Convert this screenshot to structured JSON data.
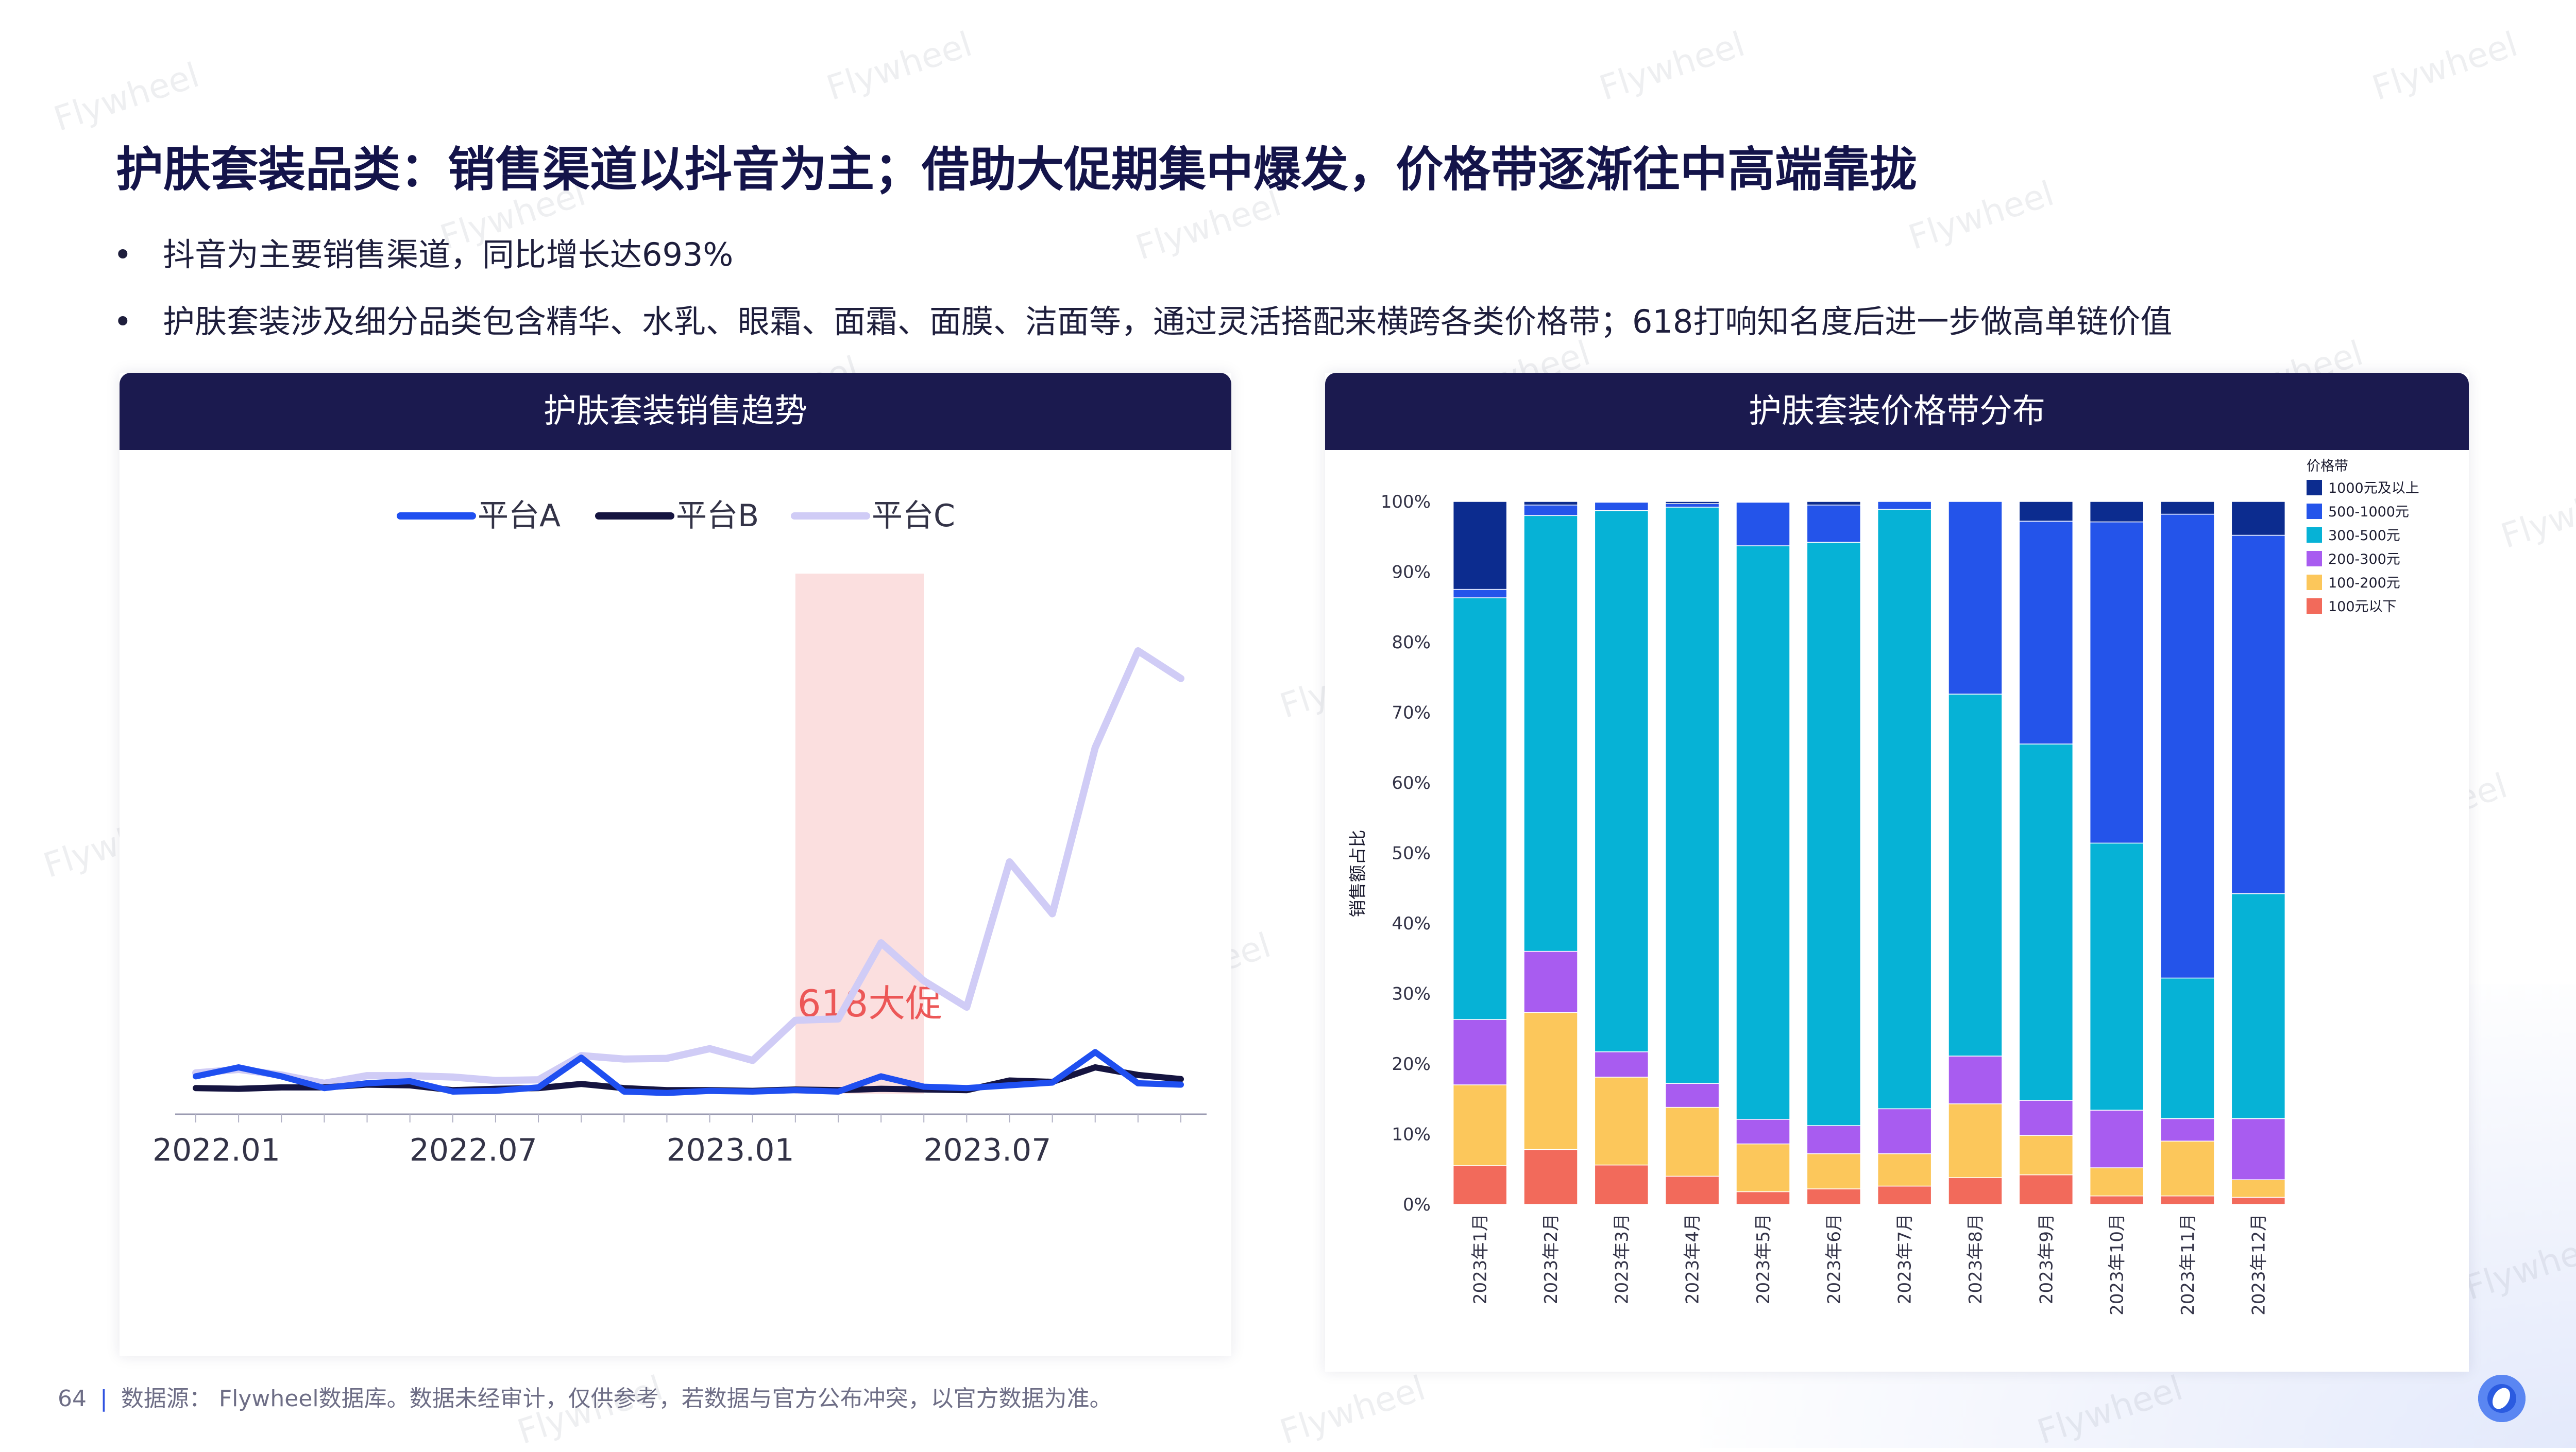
{
  "page": {
    "title": "护肤套装品类：销售渠道以抖音为主；借助大促期集中爆发，价格带逐渐往中高端靠拢",
    "bullets": [
      "抖音为主要销售渠道，同比增长达693%",
      "护肤套装涉及细分品类包含精华、水乳、眼霜、面霜、面膜、洁面等，通过灵活搭配来横跨各类价格带；618打响知名度后进一步做高单链价值"
    ],
    "bullet_mark": "•",
    "page_number": "64",
    "footer_divider": "|",
    "footer_source": "数据源： Flywheel数据库。数据未经审计，仅供参考，若数据与官方公布冲突，以官方数据为准。",
    "watermark": "Flywheel"
  },
  "chart_data": [
    {
      "type": "line",
      "title": "护肤套装销售趋势",
      "x_tick_labels": [
        "2022.01",
        "2022.07",
        "2023.01",
        "2023.07"
      ],
      "x_tick_index": [
        0,
        6,
        12,
        18
      ],
      "legend_position": "top",
      "series": [
        {
          "name": "平台A",
          "color": "#1f4ff0",
          "values": [
            2.5,
            3.8,
            2.5,
            0.8,
            1.5,
            1.8,
            0.3,
            0.4,
            0.9,
            5.2,
            0.3,
            0.1,
            0.4,
            0.3,
            0.5,
            0.3,
            2.5,
            1.0,
            0.8,
            1.2,
            1.6,
            6.0,
            1.5,
            1.3
          ]
        },
        {
          "name": "平台B",
          "color": "#151440",
          "values": [
            0.8,
            0.7,
            0.9,
            0.9,
            1.3,
            1.2,
            0.5,
            0.7,
            0.8,
            1.4,
            0.8,
            0.5,
            0.5,
            0.4,
            0.6,
            0.5,
            0.7,
            0.6,
            0.5,
            1.9,
            1.7,
            3.8,
            2.7,
            2.1
          ]
        },
        {
          "name": "平台C",
          "color": "#d0ccf6",
          "values": [
            3.0,
            3.5,
            2.7,
            1.5,
            2.6,
            2.6,
            2.4,
            1.9,
            2.0,
            5.5,
            5.0,
            5.1,
            6.5,
            4.8,
            10.6,
            10.8,
            21.8,
            16.3,
            12.5,
            33.5,
            26.0,
            50.0,
            64.0,
            60.0
          ]
        }
      ],
      "annotation": {
        "label": "618大促",
        "span_index": [
          14,
          17
        ]
      }
    },
    {
      "type": "bar",
      "stacked": "percent",
      "title": "护肤套装价格带分布",
      "ylabel": "销售额占比",
      "ylim": [
        0,
        100
      ],
      "y_ticks": [
        "0%",
        "10%",
        "20%",
        "30%",
        "40%",
        "50%",
        "60%",
        "70%",
        "80%",
        "90%",
        "100%"
      ],
      "legend_title": "价格带",
      "legend_position": "top-right",
      "categories": [
        "2023年1月",
        "2023年2月",
        "2023年3月",
        "2023年4月",
        "2023年5月",
        "2023年6月",
        "2023年7月",
        "2023年8月",
        "2023年9月",
        "2023年10月",
        "2023年11月",
        "2023年12月"
      ],
      "series": [
        {
          "name": "100元以下",
          "color": "#f26a5b",
          "values": [
            5.5,
            7.8,
            5.6,
            4.0,
            1.8,
            2.2,
            2.6,
            3.8,
            4.2,
            1.2,
            1.2,
            1.0
          ]
        },
        {
          "name": "100-200元",
          "color": "#fcc75b",
          "values": [
            11.5,
            19.5,
            12.5,
            9.8,
            6.8,
            5.0,
            4.6,
            10.5,
            5.6,
            4.0,
            7.8,
            2.5
          ]
        },
        {
          "name": "200-300元",
          "color": "#a85cf0",
          "values": [
            9.3,
            8.7,
            3.6,
            3.4,
            3.5,
            4.0,
            6.4,
            6.8,
            5.0,
            8.2,
            3.2,
            8.7
          ]
        },
        {
          "name": "300-500元",
          "color": "#06b2d6",
          "values": [
            60.0,
            62.0,
            77.0,
            82.0,
            81.6,
            83.0,
            85.3,
            51.5,
            50.7,
            38.0,
            20.0,
            32.0
          ]
        },
        {
          "name": "500-1000元",
          "color": "#2454ea",
          "values": [
            1.2,
            1.5,
            1.2,
            0.5,
            6.2,
            5.3,
            1.1,
            27.4,
            31.7,
            45.7,
            66.0,
            51.0
          ]
        },
        {
          "name": "1000元及以上",
          "color": "#0c2c8f",
          "values": [
            12.5,
            0.5,
            0.1,
            0.3,
            0.1,
            0.5,
            0.0,
            0.0,
            2.8,
            2.9,
            1.8,
            4.8
          ]
        }
      ]
    }
  ]
}
